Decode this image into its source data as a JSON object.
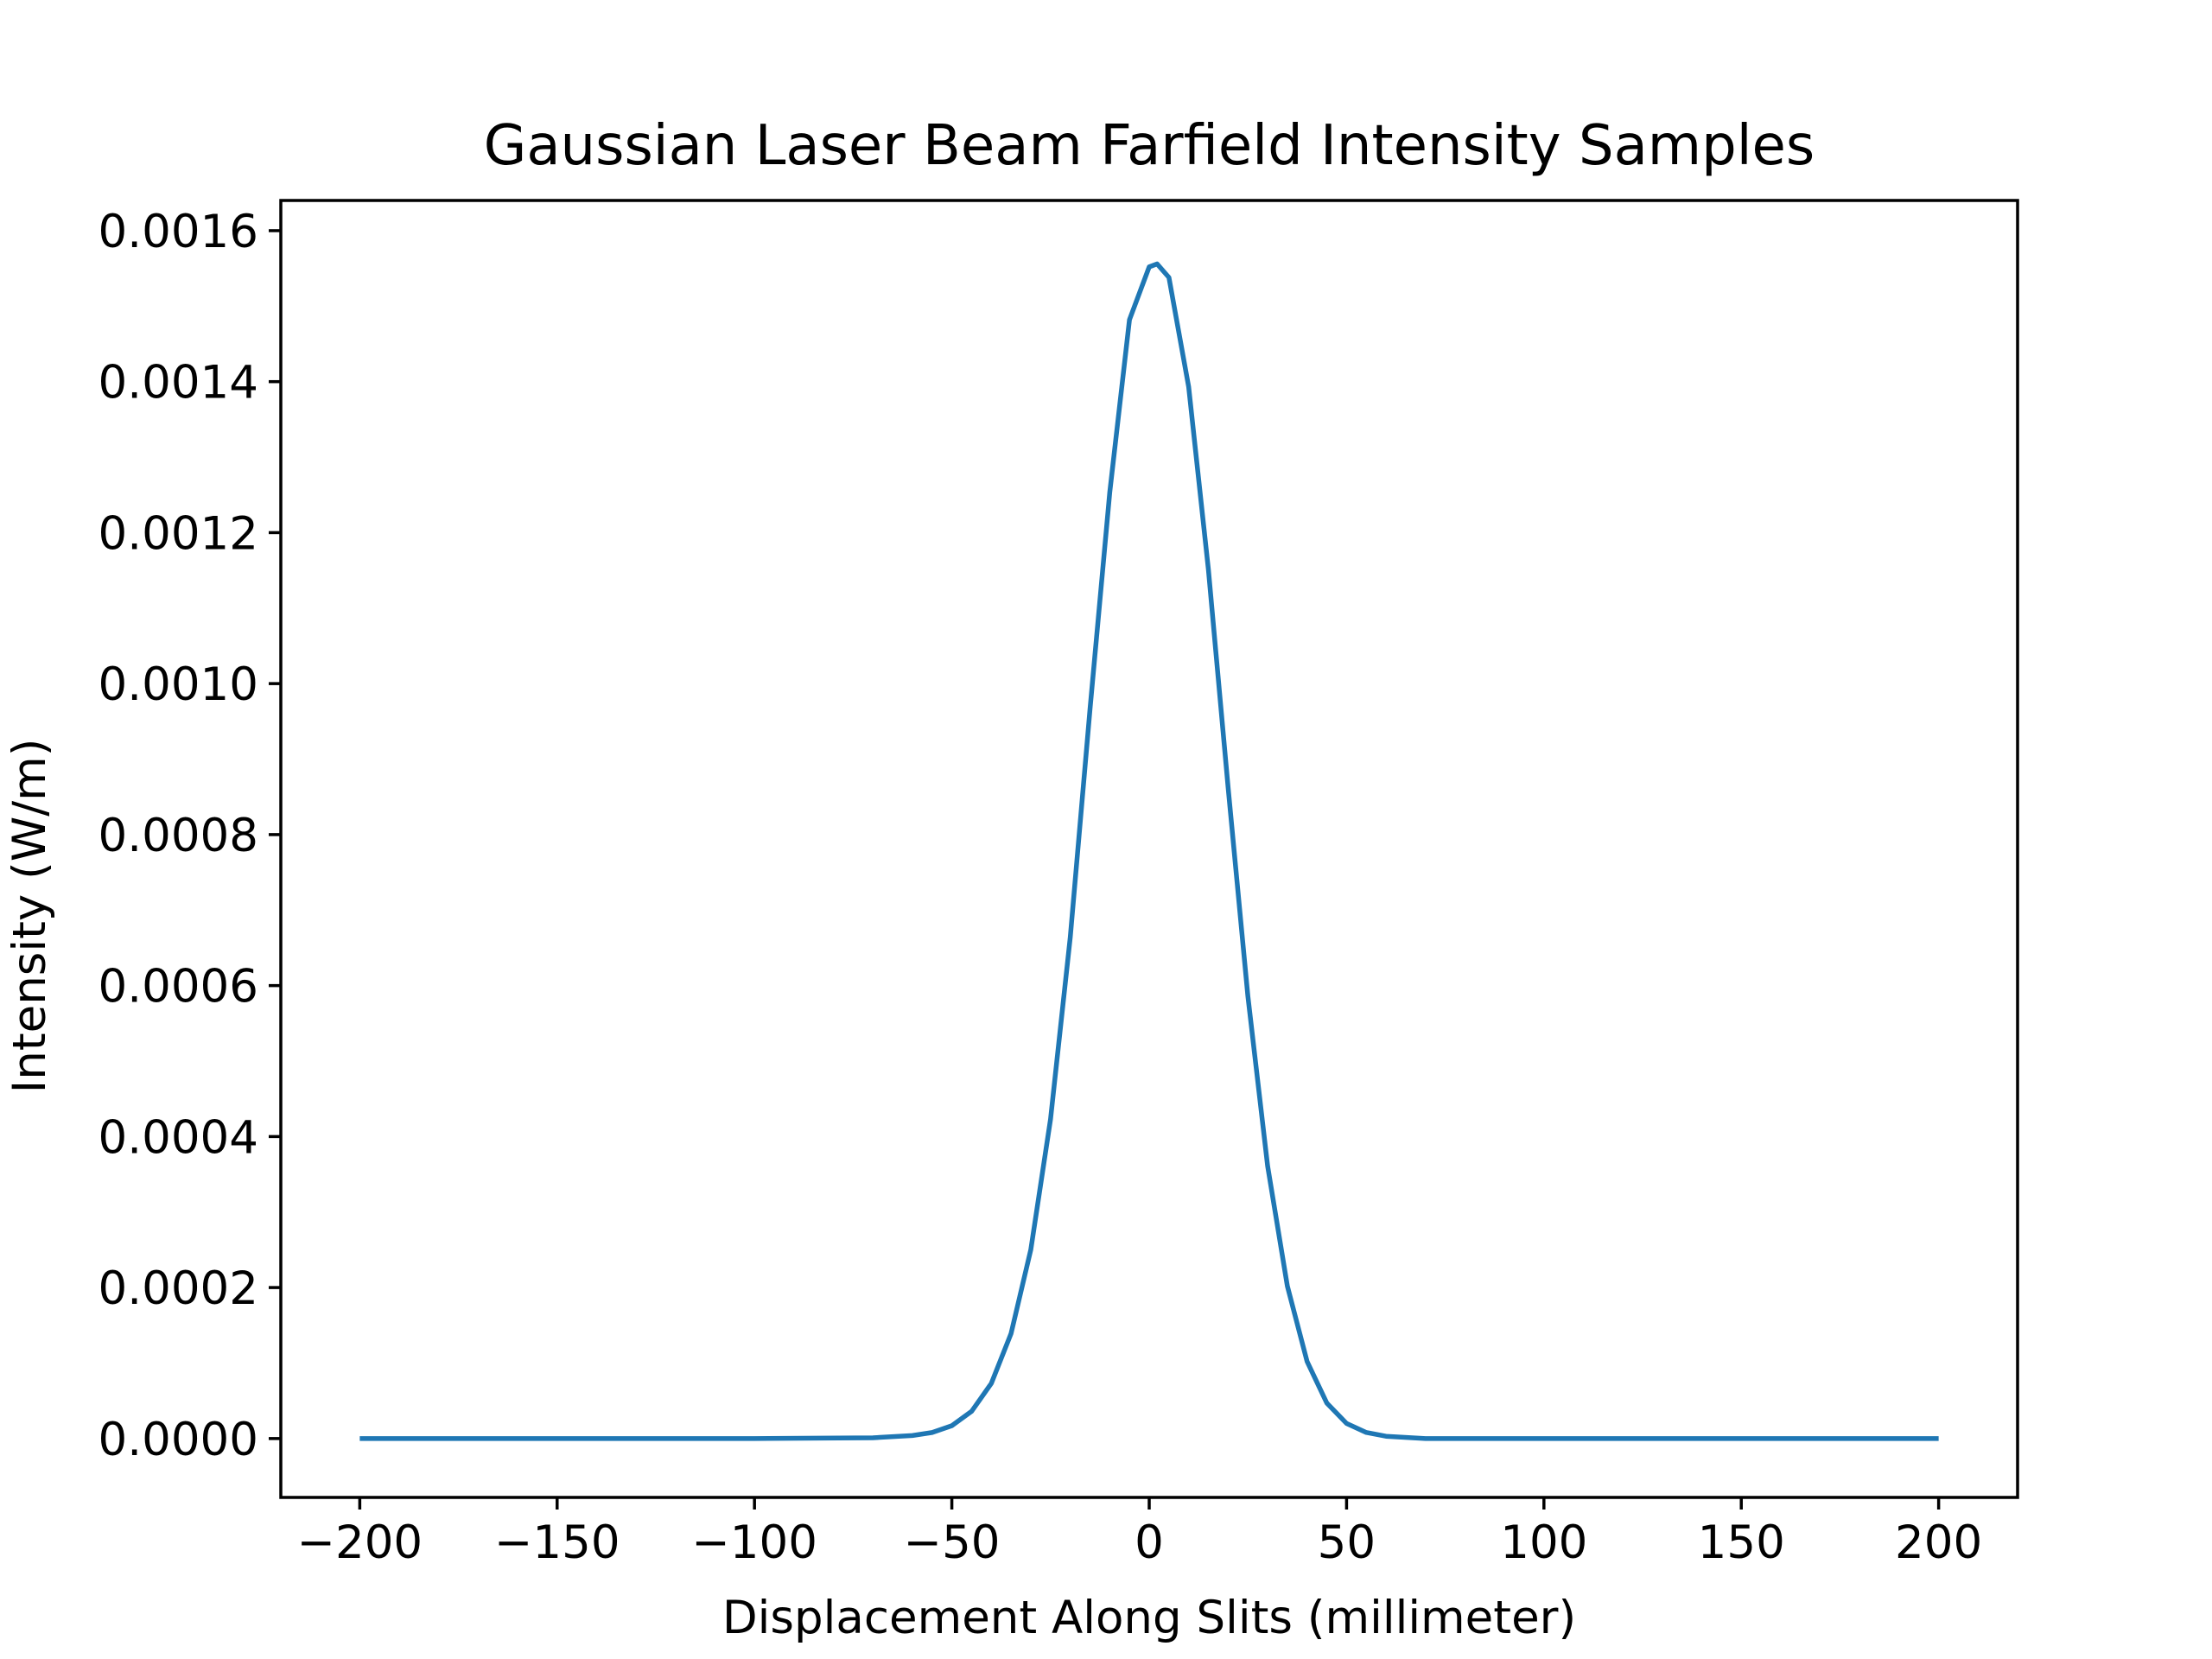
{
  "chart_data": {
    "type": "line",
    "title": "Gaussian Laser Beam Farfield Intensity Samples",
    "xlabel": "Displacement Along Slits (millimeter)",
    "ylabel": "Intensity (W/m)",
    "xlim": [
      -220,
      220
    ],
    "ylim": [
      -7.8e-05,
      0.00164
    ],
    "x_ticks": [
      -200,
      -150,
      -100,
      -50,
      0,
      50,
      100,
      150,
      200
    ],
    "x_tick_labels": [
      "−200",
      "−150",
      "−100",
      "−50",
      "0",
      "50",
      "100",
      "150",
      "200"
    ],
    "y_ticks": [
      0,
      0.0002,
      0.0004,
      0.0006,
      0.0008,
      0.001,
      0.0012,
      0.0014,
      0.0016
    ],
    "y_tick_labels": [
      "0.0000",
      "0.0002",
      "0.0004",
      "0.0006",
      "0.0008",
      "0.0010",
      "0.0012",
      "0.0014",
      "0.0016"
    ],
    "grid": false,
    "series": [
      {
        "color": "#1f77b4",
        "x": [
          -200,
          -100,
          -70,
          -60,
          -55,
          -50,
          -45,
          -40,
          -35,
          -30,
          -25,
          -20,
          -15,
          -10,
          -5,
          0,
          2,
          5,
          10,
          15,
          20,
          25,
          30,
          35,
          40,
          45,
          50,
          55,
          60,
          70,
          100,
          200
        ],
        "y": [
          0,
          0,
          1e-06,
          4e-06,
          8e-06,
          1.7e-05,
          3.6e-05,
          7.3e-05,
          0.000139,
          0.00025,
          0.000423,
          0.000664,
          0.000966,
          0.001253,
          0.001482,
          0.001552,
          0.001556,
          0.001538,
          0.001393,
          0.001151,
          0.000862,
          0.000586,
          0.000361,
          0.000202,
          0.000102,
          4.7e-05,
          2e-05,
          8e-06,
          3e-06,
          0,
          0,
          0
        ]
      }
    ]
  }
}
